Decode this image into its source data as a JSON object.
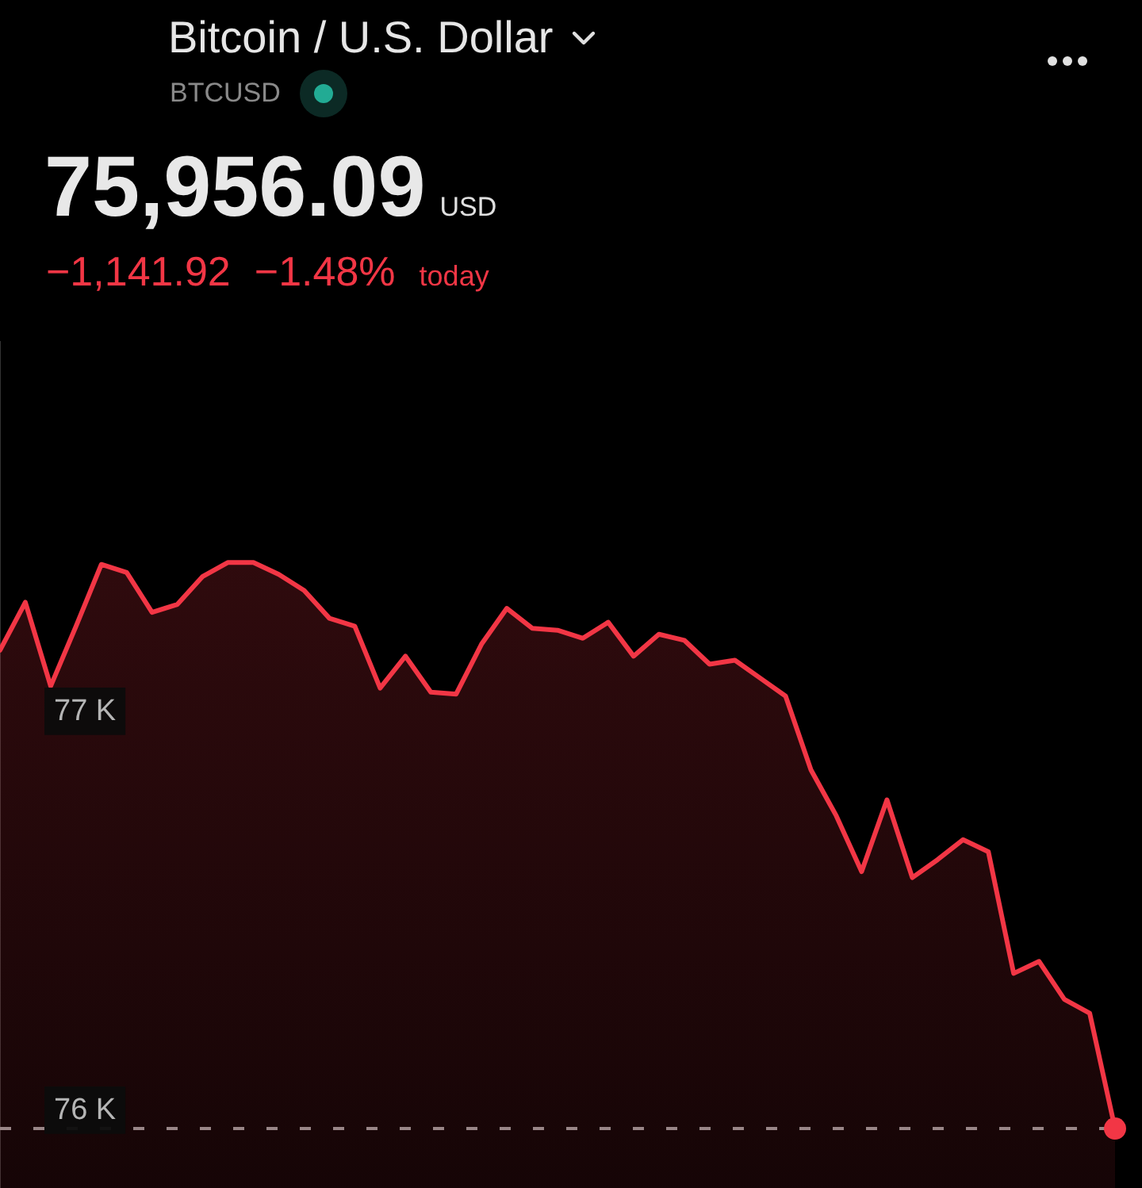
{
  "chart_data": {
    "type": "area",
    "title": "Bitcoin / U.S. Dollar",
    "subtitle": "BTCUSD",
    "annotations": [
      "75,956.09",
      "USD",
      "−1,141.92",
      "−1.48%",
      "today"
    ],
    "categories": [
      null,
      null,
      null,
      null,
      null,
      null,
      null,
      null,
      null,
      null,
      null,
      null,
      null,
      null,
      null,
      null,
      null,
      null,
      null,
      null,
      null,
      null,
      null,
      null,
      null,
      null,
      null,
      null,
      null,
      null,
      null,
      null,
      null,
      null,
      null,
      null,
      null,
      null,
      null,
      null,
      null,
      null,
      null,
      null,
      null
    ],
    "series": [
      {
        "color": "#f23645",
        "values": [
          77155,
          77275,
          77065,
          77215,
          77370,
          77350,
          77250,
          77270,
          77340,
          77375,
          77375,
          77345,
          77305,
          77235,
          77215,
          77060,
          77140,
          77050,
          77045,
          77170,
          77260,
          77210,
          77205,
          77185,
          77225,
          77140,
          77195,
          77180,
          77120,
          77130,
          77085,
          77040,
          76855,
          76740,
          76600,
          76780,
          76585,
          76630,
          76680,
          76650,
          76345,
          76375,
          76280,
          76245,
          75956
        ]
      }
    ],
    "ylim": [
      75807,
      77930
    ],
    "yticks": [
      {
        "value": 76000,
        "label": "76 K"
      },
      {
        "value": 77000,
        "label": "77 K"
      }
    ],
    "ref_lines": [
      {
        "axis": "y",
        "value": 75956,
        "color": "#8f8f8f",
        "line_style": "dashed"
      }
    ],
    "grid": false,
    "legend": false,
    "tick_labels": "y"
  }
}
